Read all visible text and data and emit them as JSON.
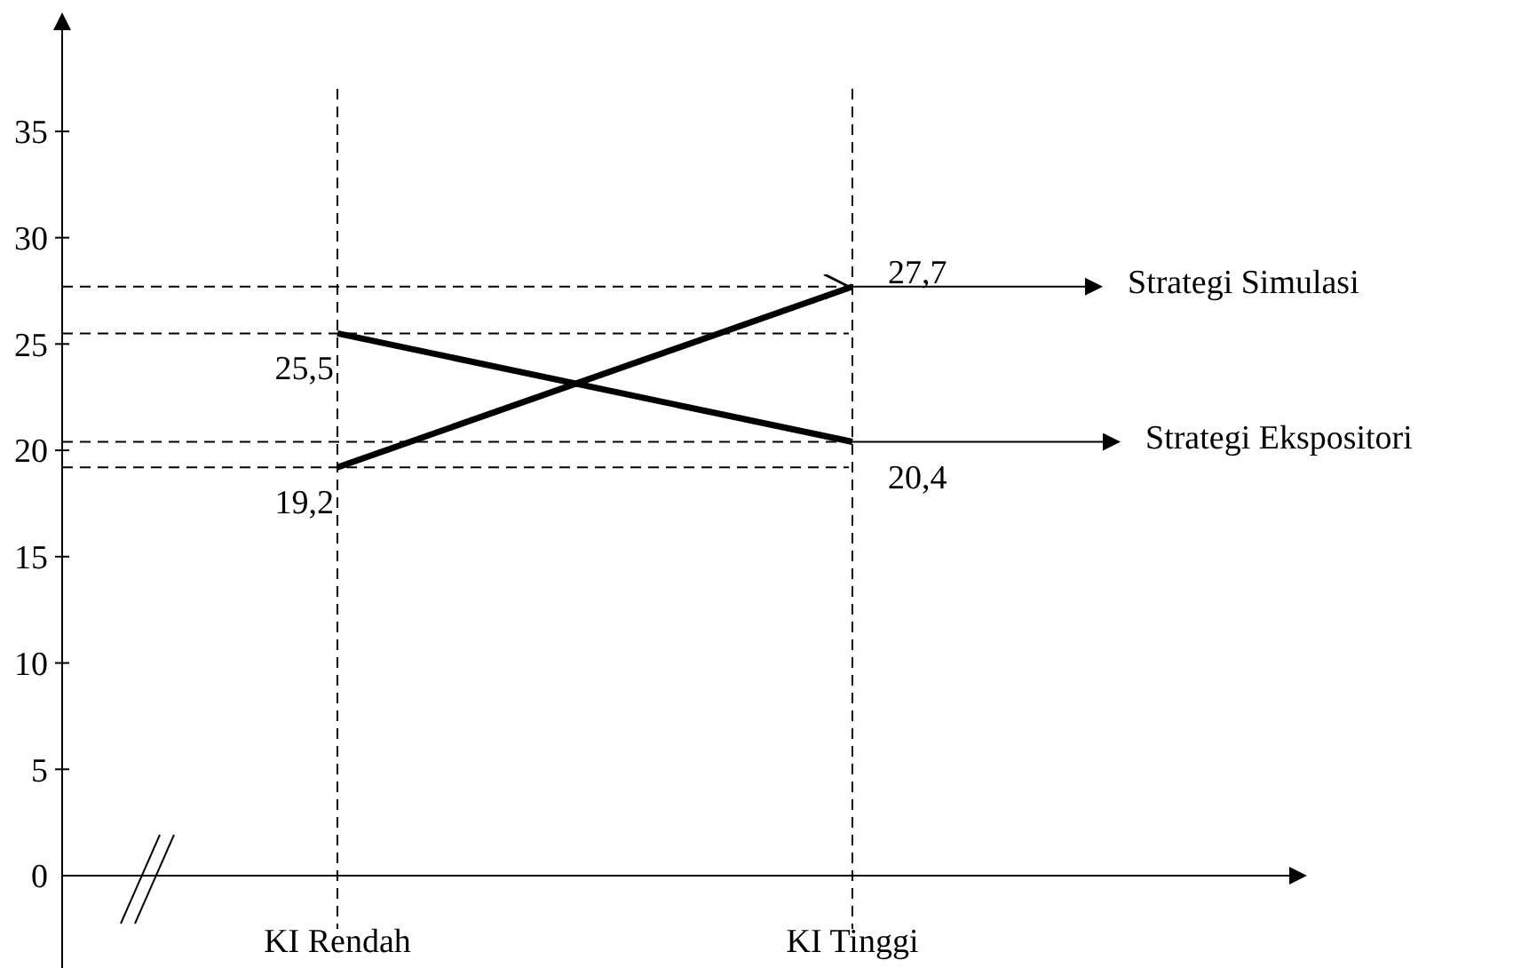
{
  "chart_data": {
    "type": "line",
    "categories": [
      "KI Rendah",
      "KI Tinggi"
    ],
    "series": [
      {
        "name": "Strategi Simulasi",
        "color": "#000000",
        "values": [
          19.2,
          27.7
        ],
        "value_labels": [
          "19,2",
          "27,7"
        ]
      },
      {
        "name": "Strategi Ekspositori",
        "color": "#000000",
        "values": [
          25.5,
          20.4
        ],
        "value_labels": [
          "25,5",
          "20,4"
        ]
      }
    ],
    "ylim": [
      0,
      37
    ],
    "yticks": [
      0,
      5,
      10,
      15,
      20,
      25,
      30,
      35
    ],
    "grid": "x",
    "line_style": "solid",
    "marker": "none",
    "ref_lines": [
      {
        "axis": "y",
        "value": 27.7,
        "line_style": "dashed"
      },
      {
        "axis": "y",
        "value": 25.5,
        "line_style": "dashed"
      },
      {
        "axis": "y",
        "value": 20.4,
        "line_style": "dashed"
      },
      {
        "axis": "y",
        "value": 19.2,
        "line_style": "dashed"
      }
    ]
  }
}
